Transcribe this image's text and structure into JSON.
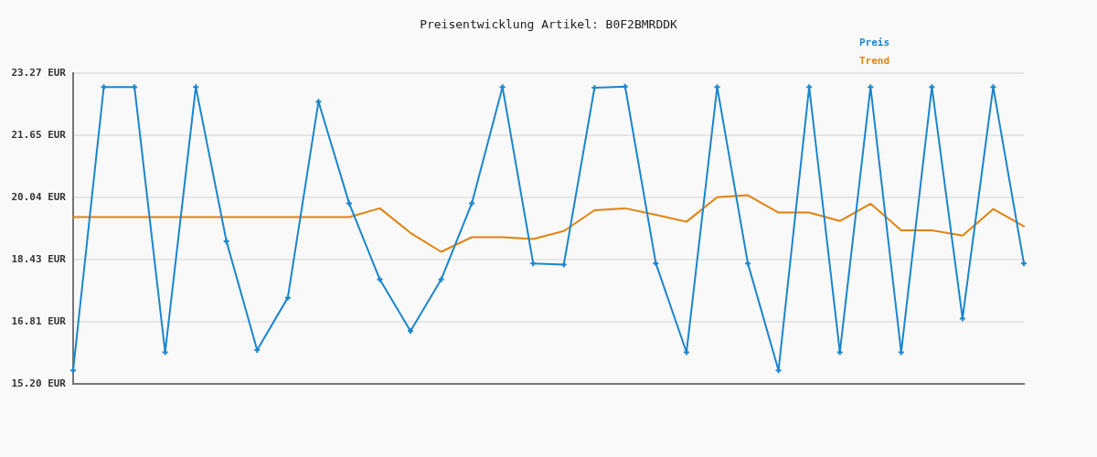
{
  "chart_data": {
    "type": "line",
    "title": "Preisentwicklung Artikel: B0F2BMRDDK",
    "categories": [
      null,
      null,
      null,
      null,
      null,
      null,
      null,
      null,
      null,
      null,
      null,
      null,
      null,
      null,
      null,
      null,
      null,
      null,
      null,
      null,
      null,
      null,
      null,
      null,
      null,
      null,
      null,
      null,
      null,
      null,
      null,
      null
    ],
    "series": [
      {
        "name": "Preis",
        "color": "#1b85cc",
        "values": [
          15.55,
          22.91,
          22.91,
          16.02,
          22.91,
          18.9,
          16.08,
          17.44,
          22.53,
          19.89,
          17.91,
          16.57,
          17.91,
          19.89,
          22.91,
          18.33,
          18.3,
          22.89,
          22.92,
          18.33,
          16.02,
          22.91,
          18.33,
          15.55,
          22.91,
          16.02,
          22.91,
          16.02,
          22.91,
          16.9,
          22.91,
          18.33
        ]
      },
      {
        "name": "Trend",
        "color": "#e0820f",
        "marker": "none",
        "values": [
          19.53,
          19.53,
          19.53,
          19.53,
          19.53,
          19.53,
          19.53,
          19.53,
          19.53,
          19.53,
          19.76,
          19.12,
          18.63,
          19.01,
          19.01,
          18.96,
          19.17,
          19.71,
          19.76,
          19.59,
          19.41,
          20.05,
          20.1,
          19.65,
          19.65,
          19.43,
          19.88,
          19.19,
          19.19,
          19.05,
          19.74,
          19.29
        ]
      }
    ],
    "ylim": [
      15.2,
      23.27
    ],
    "yticks": [
      {
        "value": 15.2,
        "label": "15.20 EUR"
      },
      {
        "value": 16.81,
        "label": "16.81 EUR"
      },
      {
        "value": 18.43,
        "label": "18.43 EUR"
      },
      {
        "value": 20.04,
        "label": "20.04 EUR"
      },
      {
        "value": 21.65,
        "label": "21.65 EUR"
      },
      {
        "value": 23.27,
        "label": "23.27 EUR"
      }
    ],
    "grid": "y",
    "legend": "top right",
    "marker": "cross"
  }
}
